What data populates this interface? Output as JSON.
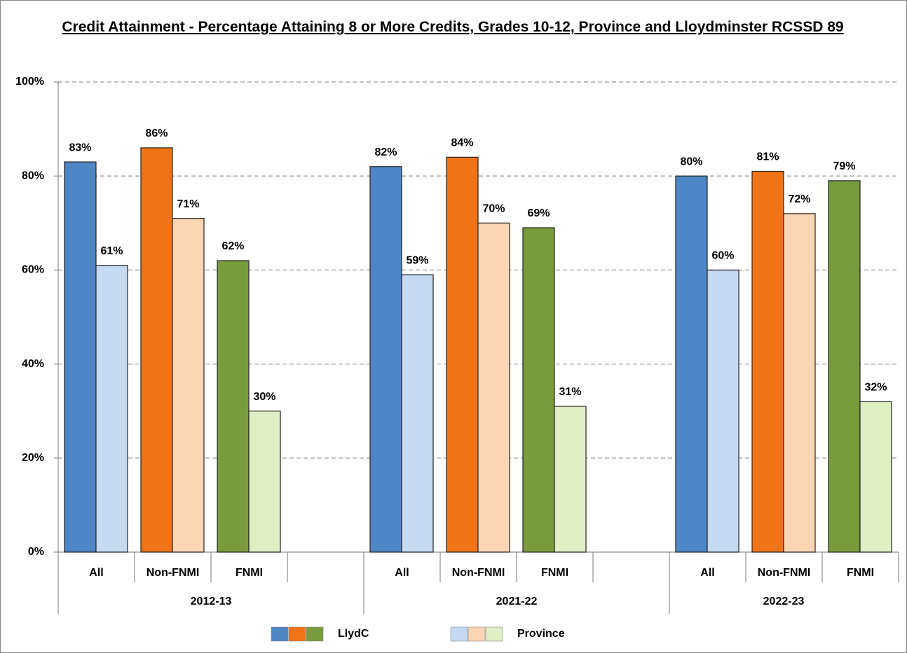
{
  "chart_data": {
    "type": "grouped_bar",
    "title": "Credit Attainment - Percentage Attaining 8 or More Credits, Grades 10-12, Province and Lloydminster RCSSD 89",
    "groups": [
      "2012-13",
      "2021-22",
      "2022-23"
    ],
    "categories": [
      "All",
      "Non-FNMI",
      "FNMI"
    ],
    "series": [
      {
        "name": "LlydC",
        "colors": [
          "#4f86c6",
          "#f07417",
          "#7a9a3e"
        ],
        "values": [
          [
            83,
            86,
            62
          ],
          [
            82,
            84,
            69
          ],
          [
            80,
            81,
            79
          ]
        ],
        "value_labels": [
          [
            "83%",
            "86%",
            "62%"
          ],
          [
            "82%",
            "84%",
            "69%"
          ],
          [
            "80%",
            "81%",
            "79%"
          ]
        ]
      },
      {
        "name": "Province",
        "colors": [
          "#c5d9f1",
          "#fcd5b5",
          "#e0eec4"
        ],
        "values": [
          [
            61,
            71,
            30
          ],
          [
            59,
            70,
            31
          ],
          [
            60,
            72,
            32
          ]
        ],
        "value_labels": [
          [
            "61%",
            "71%",
            "30%"
          ],
          [
            "59%",
            "70%",
            "31%"
          ],
          [
            "60%",
            "72%",
            "32%"
          ]
        ]
      }
    ],
    "ylim": [
      0,
      100
    ],
    "yticks": [
      {
        "value": 0,
        "label": "0%"
      },
      {
        "value": 20,
        "label": "20%"
      },
      {
        "value": 40,
        "label": "40%"
      },
      {
        "value": 60,
        "label": "60%"
      },
      {
        "value": 80,
        "label": "80%"
      },
      {
        "value": 100,
        "label": "100%"
      }
    ],
    "grid": true
  }
}
